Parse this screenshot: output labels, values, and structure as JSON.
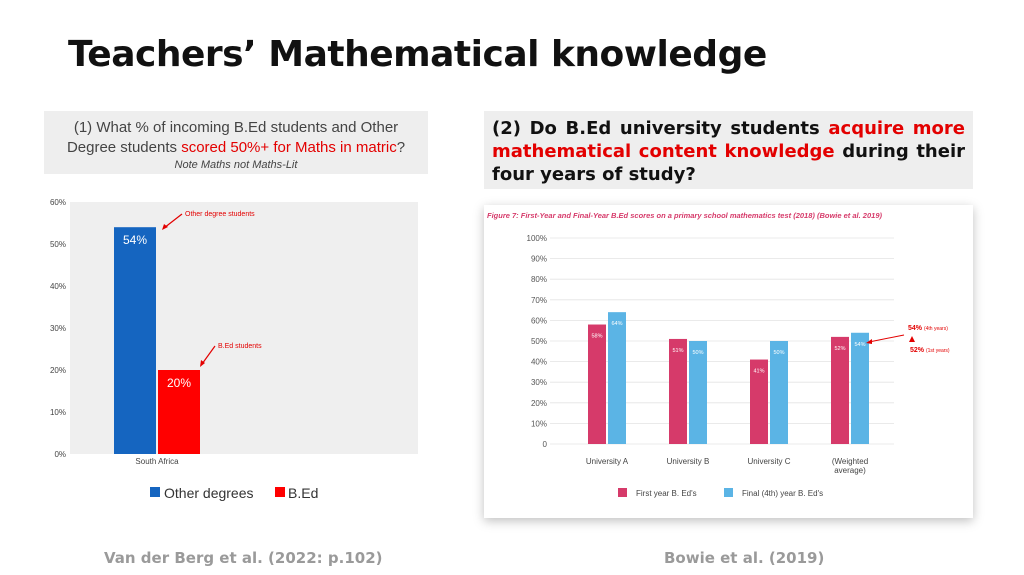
{
  "title": "Teachers’ Mathematical knowledge",
  "question1": {
    "line1": "(1) What % of incoming B.Ed students and Other",
    "line2_pre": "Degree students ",
    "line2_red": "scored 50%+ for Maths in matric",
    "line2_post": "?",
    "note": "Note Maths not Maths-Lit"
  },
  "question2": {
    "t1": "(2) Do B.Ed university students ",
    "red1": "acquire more mathematical content knowledge",
    "t2": " during their four years of study?"
  },
  "colors": {
    "other_degrees": "#1565c0",
    "bed": "#ff0000",
    "first_year": "#d63a6a",
    "final_year": "#5bb4e5",
    "annotation_red": "#e30000"
  },
  "chart_data": [
    {
      "type": "bar",
      "categories": [
        "South Africa"
      ],
      "series": [
        {
          "name": "Other degrees",
          "values": [
            54
          ]
        },
        {
          "name": "B.Ed",
          "values": [
            20
          ]
        }
      ],
      "data_labels": [
        "54%",
        "20%"
      ],
      "yticks": [
        "0%",
        "10%",
        "20%",
        "30%",
        "40%",
        "50%",
        "60%"
      ],
      "ylim": [
        0,
        60
      ],
      "annotations": [
        "Other degree students",
        "B.Ed students"
      ],
      "legend": "bottom"
    },
    {
      "type": "bar",
      "title": "Figure 7: First-Year and Final-Year B.Ed scores on a primary school mathematics test (2018) (Bowie et al. 2019)",
      "categories": [
        "University A",
        "University B",
        "University C",
        "(Weighted average)"
      ],
      "series": [
        {
          "name": "First year B. Ed's",
          "values": [
            58,
            51,
            41,
            52
          ]
        },
        {
          "name": "Final (4th) year B. Ed's",
          "values": [
            64,
            50,
            50,
            54
          ]
        }
      ],
      "yticks": [
        "0",
        "10%",
        "20%",
        "30%",
        "40%",
        "50%",
        "60%",
        "70%",
        "80%",
        "90%",
        "100%"
      ],
      "ylim": [
        0,
        100
      ],
      "annotations": [
        "54%",
        "(4th years)",
        "52%",
        "(1st years)"
      ],
      "legend": "bottom"
    }
  ],
  "footer": {
    "left": "Van der Berg et al. (2022: p.102)",
    "right": "Bowie et al. (2019)"
  }
}
